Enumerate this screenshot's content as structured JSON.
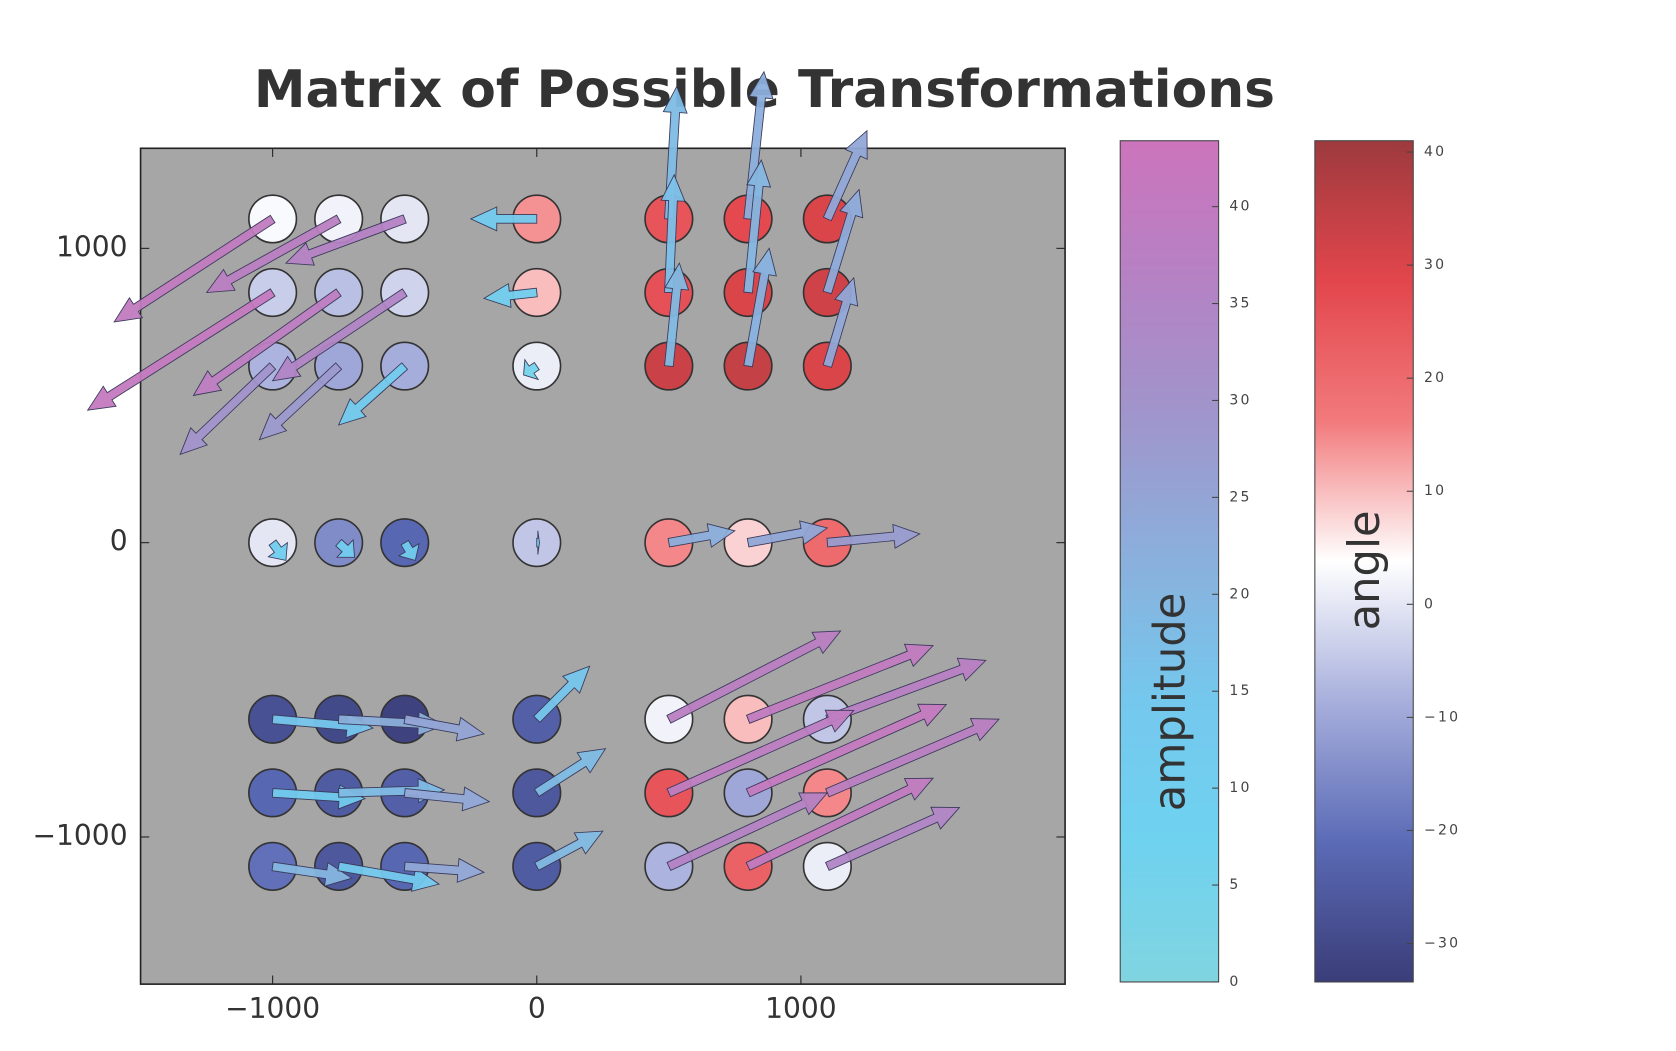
{
  "chart_data": {
    "type": "quiver",
    "title": "Matrix of Possible Transformations",
    "xlim": [
      -1500,
      2000
    ],
    "ylim": [
      -1500,
      1340
    ],
    "xticks": [
      {
        "value": -1000,
        "label": "−1000"
      },
      0,
      1000
    ],
    "yticks": [
      {
        "value": -1000,
        "label": "−1000"
      },
      0,
      1000
    ],
    "background": "#a6a6a6",
    "points": {
      "x": [
        -1000,
        -750,
        -500,
        -1000,
        -750,
        -500,
        -1000,
        -750,
        -500,
        0,
        0,
        0,
        500,
        800,
        1100,
        500,
        800,
        1100,
        500,
        800,
        1100,
        -1000,
        -750,
        -500,
        0,
        500,
        800,
        1100,
        -1000,
        -750,
        -500,
        -1000,
        -750,
        -500,
        -1000,
        -750,
        -500,
        0,
        0,
        0,
        500,
        800,
        1100,
        500,
        800,
        1100,
        500,
        800,
        1100
      ],
      "y": [
        1100,
        1100,
        1100,
        850,
        850,
        850,
        600,
        600,
        600,
        1100,
        850,
        600,
        1100,
        1100,
        1100,
        850,
        850,
        850,
        600,
        600,
        600,
        0,
        0,
        0,
        0,
        0,
        0,
        0,
        -600,
        -600,
        -600,
        -850,
        -850,
        -850,
        -1100,
        -1100,
        -1100,
        -600,
        -850,
        -1100,
        -600,
        -600,
        -600,
        -850,
        -850,
        -850,
        -1100,
        -1100,
        -1100
      ],
      "angle": [
        3,
        2,
        0,
        -4,
        -6,
        -3,
        -8,
        -10,
        -9,
        14,
        10,
        1,
        25,
        28,
        30,
        26,
        30,
        32,
        33,
        34,
        30,
        0,
        -15,
        -22,
        -5,
        15,
        8,
        20,
        -28,
        -30,
        -32,
        -22,
        -25,
        -24,
        -20,
        -26,
        -22,
        -24,
        -26,
        -25,
        2,
        10,
        -5,
        25,
        -10,
        15,
        -8,
        22,
        1
      ],
      "u": [
        -600,
        -500,
        -450,
        -700,
        -550,
        -500,
        -350,
        -300,
        -250,
        -250,
        -200,
        -50,
        30,
        60,
        150,
        20,
        50,
        120,
        40,
        80,
        100,
        50,
        60,
        40,
        10,
        250,
        300,
        350,
        380,
        400,
        300,
        350,
        400,
        320,
        300,
        380,
        300,
        200,
        260,
        250,
        650,
        700,
        600,
        700,
        750,
        650,
        600,
        700,
        500
      ],
      "v": [
        -350,
        -250,
        -150,
        -400,
        -350,
        -300,
        -300,
        -250,
        -200,
        0,
        -20,
        -30,
        450,
        500,
        300,
        400,
        450,
        350,
        350,
        400,
        300,
        -60,
        -50,
        -60,
        0,
        40,
        50,
        30,
        -30,
        -20,
        -50,
        -20,
        10,
        -30,
        -40,
        -60,
        -20,
        180,
        150,
        120,
        300,
        250,
        200,
        280,
        300,
        250,
        250,
        300,
        200
      ],
      "amplitude": [
        40,
        38,
        36,
        41,
        39,
        35,
        30,
        28,
        12,
        12,
        11,
        5,
        18,
        22,
        24,
        17,
        20,
        23,
        19,
        21,
        24,
        10,
        11,
        12,
        8,
        22,
        24,
        27,
        15,
        22,
        25,
        12,
        18,
        24,
        20,
        14,
        24,
        15,
        18,
        19,
        38,
        40,
        37,
        39,
        41,
        38,
        36,
        40,
        35
      ]
    },
    "colorbars": [
      {
        "label": "amplitude",
        "lim": [
          0,
          43.4
        ],
        "ticks": [
          0,
          5,
          10,
          15,
          20,
          25,
          30,
          35,
          40
        ],
        "colors": [
          "#80d4e0",
          "#6fd2ef",
          "#74c8ee",
          "#8ab0dc",
          "#9f96cc",
          "#b582c4",
          "#cc74bc"
        ]
      },
      {
        "label": "angle",
        "lim": [
          -33.4,
          41
        ],
        "ticks": [
          {
            "value": -30,
            "label": "−30"
          },
          {
            "value": -20,
            "label": "−20"
          },
          {
            "value": -10,
            "label": "−10"
          },
          0,
          10,
          20,
          30,
          40
        ],
        "colors": [
          "#3a3d78",
          "#5b6bb6",
          "#a7afdc",
          "#ffffff",
          "#f27a7c",
          "#e2464c",
          "#9d3a3e"
        ],
        "center": 3
      }
    ]
  }
}
